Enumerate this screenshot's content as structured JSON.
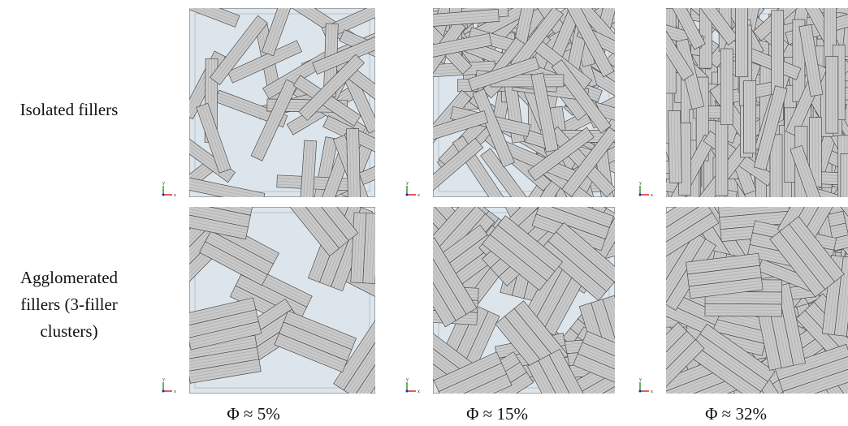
{
  "row_labels": [
    [
      "Isolated fillers"
    ],
    [
      "Agglomerated",
      "fillers (3-filler",
      "clusters)"
    ]
  ],
  "column_labels": [
    "Φ ≈ 5%",
    "Φ ≈ 15%",
    "Φ ≈ 32%"
  ],
  "axis_labels": {
    "x": "x",
    "y": "y"
  }
}
